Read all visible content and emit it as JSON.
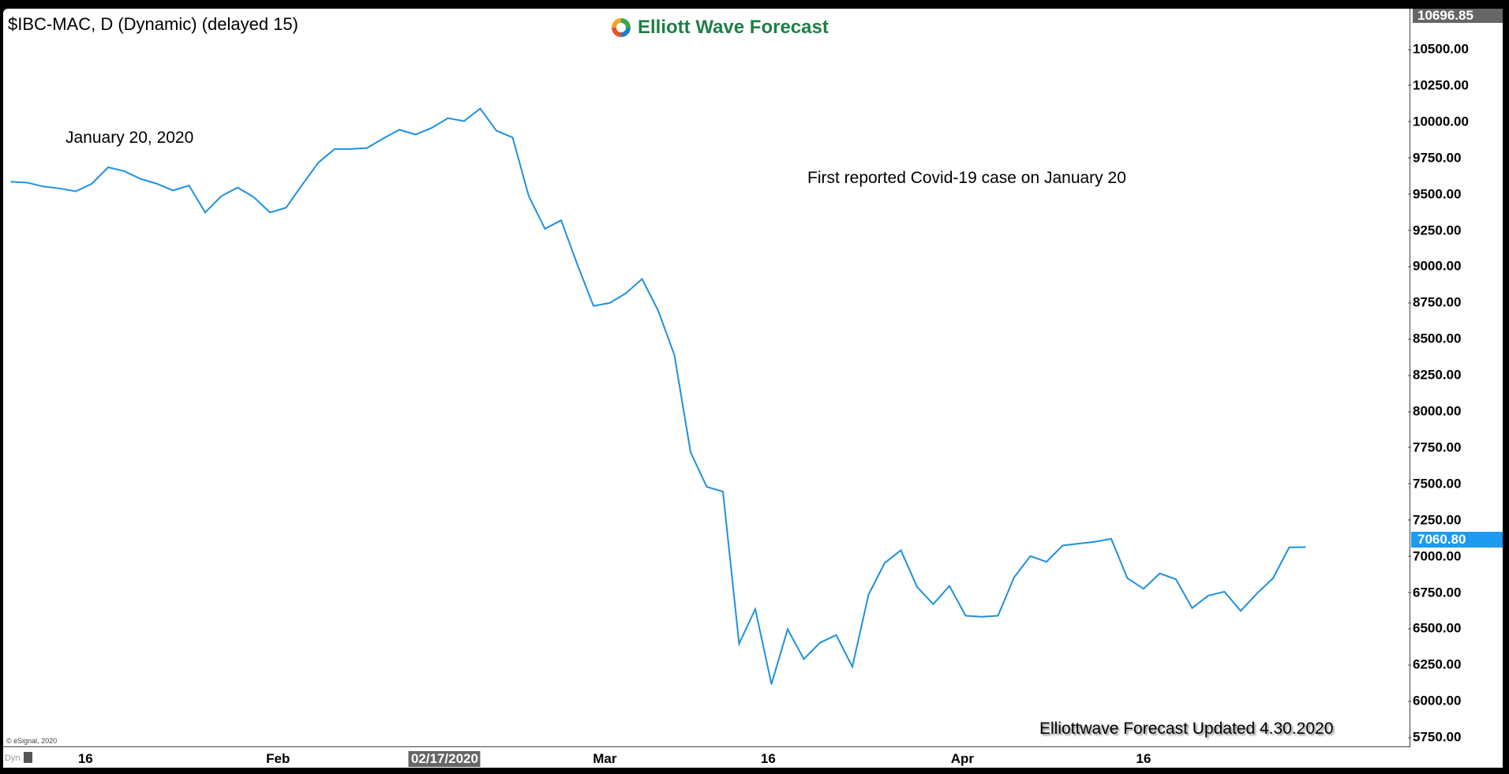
{
  "header": {
    "title": "$IBC-MAC, D (Dynamic) (delayed 15)",
    "logo_text": "Elliott Wave Forecast"
  },
  "annotations": {
    "date_label": "January 20, 2020",
    "note": "First reported Covid-19 case on January 20",
    "footer": "Elliottwave Forecast Updated 4.30.2020",
    "copyright": "© eSignal, 2020",
    "dyn": "Dyn"
  },
  "colors": {
    "line": "#1e90e0",
    "last_badge": "#1e9af0",
    "high_badge": "#666666",
    "logo_green": "#1e7f45"
  },
  "chart_data": {
    "type": "line",
    "title": "$IBC-MAC, D (Dynamic) (delayed 15)",
    "ylim": [
      5650,
      10696.85
    ],
    "y_ticks": [
      "10500.00",
      "10250.00",
      "10000.00",
      "9750.00",
      "9500.00",
      "9250.00",
      "9000.00",
      "8750.00",
      "8500.00",
      "8250.00",
      "8000.00",
      "7750.00",
      "7500.00",
      "7250.00",
      "7000.00",
      "6750.00",
      "6500.00",
      "6250.00",
      "6000.00",
      "5750.00"
    ],
    "high_label": "10696.85",
    "last_label": "7060.80",
    "last_value": 7060.8,
    "x_ticks": [
      {
        "label": "16",
        "index": 4.6
      },
      {
        "label": "Feb",
        "index": 16.5
      },
      {
        "label": "02/17/2020",
        "index": 26.8,
        "selected": true
      },
      {
        "label": "Mar",
        "index": 36.7
      },
      {
        "label": "16",
        "index": 46.8
      },
      {
        "label": "Apr",
        "index": 58.8
      },
      {
        "label": "16",
        "index": 70.0
      }
    ],
    "series": [
      {
        "values": [
          9583,
          9577,
          9550,
          9537,
          9517,
          9570,
          9683,
          9656,
          9603,
          9570,
          9523,
          9557,
          9371,
          9484,
          9543,
          9477,
          9371,
          9404,
          9563,
          9716,
          9809,
          9809,
          9816,
          9882,
          9942,
          9909,
          9955,
          10022,
          10002,
          10088,
          9935,
          9889,
          9484,
          9258,
          9317,
          9012,
          8726,
          8746,
          8813,
          8912,
          8693,
          8387,
          7716,
          7477,
          7444,
          6394,
          6633,
          6115,
          6494,
          6288,
          6401,
          6454,
          6235,
          6733,
          6952,
          7039,
          6786,
          6667,
          6793,
          6587,
          6580,
          6587,
          6853,
          6999,
          6959,
          7072,
          7085,
          7098,
          7118,
          6846,
          6773,
          6879,
          6839,
          6640,
          6726,
          6753,
          6620,
          6740,
          6846,
          7059,
          7060.8
        ]
      }
    ]
  }
}
